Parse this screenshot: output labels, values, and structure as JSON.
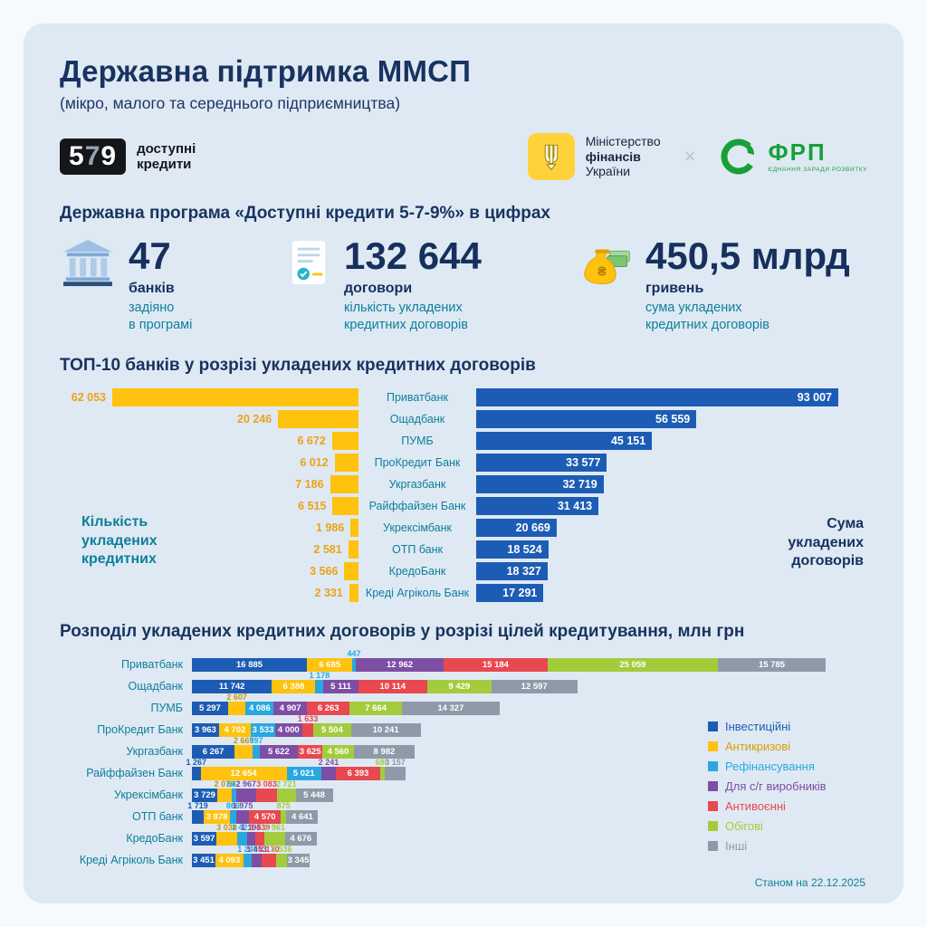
{
  "header": {
    "title": "Державна підтримка ММСП",
    "subtitle": "(мікро, малого та середнього підприємництва)",
    "logo_579": {
      "d1": "5",
      "d2": "7",
      "d3": "9",
      "label": "доступні\nкредити"
    },
    "minfin": {
      "l1": "Міністерство",
      "l2": "фінансів",
      "l3": "України"
    },
    "separator": "×",
    "frp": {
      "name": "ФРП",
      "tagline": "ЄДНАННЯ ЗАРАДИ РОЗВИТКУ"
    }
  },
  "stats": {
    "title": "Державна програма «Доступні кредити 5-7-9%» в цифрах",
    "items": [
      {
        "icon": "bank-icon",
        "value": "47",
        "label": "банків",
        "desc": "задіяно\nв програмі"
      },
      {
        "icon": "document-icon",
        "value": "132 644",
        "label": "договори",
        "desc": "кількість укладених\nкредитних договорів"
      },
      {
        "icon": "money-bag-icon",
        "value": "450,5 млрд",
        "label": "гривень",
        "desc": "сума укладених\nкредитних договорів"
      }
    ]
  },
  "chart_data": [
    {
      "type": "bar",
      "variant": "diverging-horizontal",
      "title": "ТОП-10 банків у розрізі укладених кредитних договорів",
      "categories": [
        "Приватбанк",
        "Ощадбанк",
        "ПУМБ",
        "ПроКредит Банк",
        "Укргазбанк",
        "Райффайзен Банк",
        "Укрексімбанк",
        "ОТП банк",
        "КредоБанк",
        "Креді Агріколь Банк"
      ],
      "series": [
        {
          "name": "Кількість укладених кредитних",
          "side": "left",
          "color": "#ffc20e",
          "values": [
            62053,
            20246,
            6672,
            6012,
            7186,
            6515,
            1986,
            2581,
            3566,
            2331
          ]
        },
        {
          "name": "Сума укладених договорів",
          "side": "right",
          "color": "#1d5cb4",
          "values": [
            93007,
            56559,
            45151,
            33577,
            32719,
            31413,
            20669,
            18524,
            18327,
            17291
          ]
        }
      ],
      "left_axis_label": "Кількість\nукладених\nкредитних",
      "right_axis_label": "Сума\nукладених\nдоговорів"
    },
    {
      "type": "bar",
      "variant": "stacked-horizontal",
      "title": "Розподіл укладених кредитних договорів у розрізі цілей кредитування, млн грн",
      "legend": [
        {
          "label": "Інвестиційні",
          "color": "#1d5cb4"
        },
        {
          "label": "Антикризові",
          "color": "#ffc20e"
        },
        {
          "label": "Рефінансування",
          "color": "#29a8e0"
        },
        {
          "label": "Для с/г виробників",
          "color": "#7d4ea3"
        },
        {
          "label": "Антивоєнні",
          "color": "#e8484f"
        },
        {
          "label": "Обігові",
          "color": "#a3cc3d"
        },
        {
          "label": "Інші",
          "color": "#8f9aa9"
        }
      ],
      "rows": [
        {
          "bank": "Приватбанк",
          "values": [
            16885,
            6685,
            447,
            12962,
            15184,
            25059,
            15785
          ]
        },
        {
          "bank": "Ощадбанк",
          "values": [
            11742,
            6388,
            1178,
            5111,
            10114,
            9429,
            12597
          ]
        },
        {
          "bank": "ПУМБ",
          "values": [
            5297,
            2607,
            4086,
            4907,
            6263,
            7664,
            14327
          ]
        },
        {
          "bank": "ПроКредит Банк",
          "values": [
            3963,
            4702,
            3533,
            4000,
            1633,
            5504,
            10241
          ]
        },
        {
          "bank": "Укргазбанк",
          "values": [
            6267,
            2665,
            997,
            5622,
            3625,
            4560,
            8982
          ]
        },
        {
          "bank": "Райффайзен Банк",
          "values": [
            1267,
            12654,
            5021,
            2241,
            6393,
            680,
            3157
          ]
        },
        {
          "bank": "Укрексімбанк",
          "values": [
            3729,
            2079,
            642,
            2967,
            3083,
            2721,
            5448
          ]
        },
        {
          "bank": "ОТП банк",
          "values": [
            1719,
            3878,
            866,
            1975,
            4570,
            875,
            4641
          ]
        },
        {
          "bank": "КредоБанк",
          "values": [
            3597,
            3038,
            1421,
            1195,
            1439,
            2961,
            4676
          ]
        },
        {
          "bank": "Креді Агріколь Банк",
          "values": [
            3451,
            4093,
            1245,
            1453,
            2170,
            1536,
            3345
          ]
        }
      ]
    }
  ],
  "footer": {
    "as_of": "Станом на 22.12.2025"
  }
}
